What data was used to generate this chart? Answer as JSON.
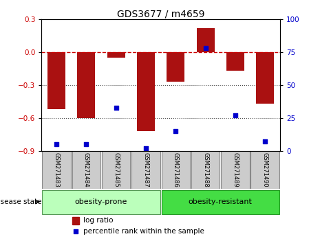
{
  "title": "GDS3677 / m4659",
  "samples": [
    "GSM271483",
    "GSM271484",
    "GSM271485",
    "GSM271487",
    "GSM271486",
    "GSM271488",
    "GSM271489",
    "GSM271490"
  ],
  "log_ratio": [
    -0.52,
    -0.6,
    -0.05,
    -0.72,
    -0.27,
    0.22,
    -0.17,
    -0.47
  ],
  "percentile_rank": [
    5,
    5,
    33,
    2,
    15,
    78,
    27,
    7
  ],
  "group1_label": "obesity-prone",
  "group1_count": 4,
  "group2_label": "obesity-resistant",
  "group2_count": 4,
  "disease_state_label": "disease state",
  "ylim_left": [
    -0.9,
    0.3
  ],
  "ylim_right": [
    0,
    100
  ],
  "yticks_left": [
    -0.9,
    -0.6,
    -0.3,
    0.0,
    0.3
  ],
  "yticks_right": [
    0,
    25,
    50,
    75,
    100
  ],
  "bar_color": "#aa1111",
  "dot_color": "#0000cc",
  "hline_color": "#cc0000",
  "dotted_line_color": "#444444",
  "group1_color": "#bbffbb",
  "group2_color": "#44dd44",
  "sample_box_color": "#cccccc",
  "legend_bar_label": "log ratio",
  "legend_dot_label": "percentile rank within the sample"
}
